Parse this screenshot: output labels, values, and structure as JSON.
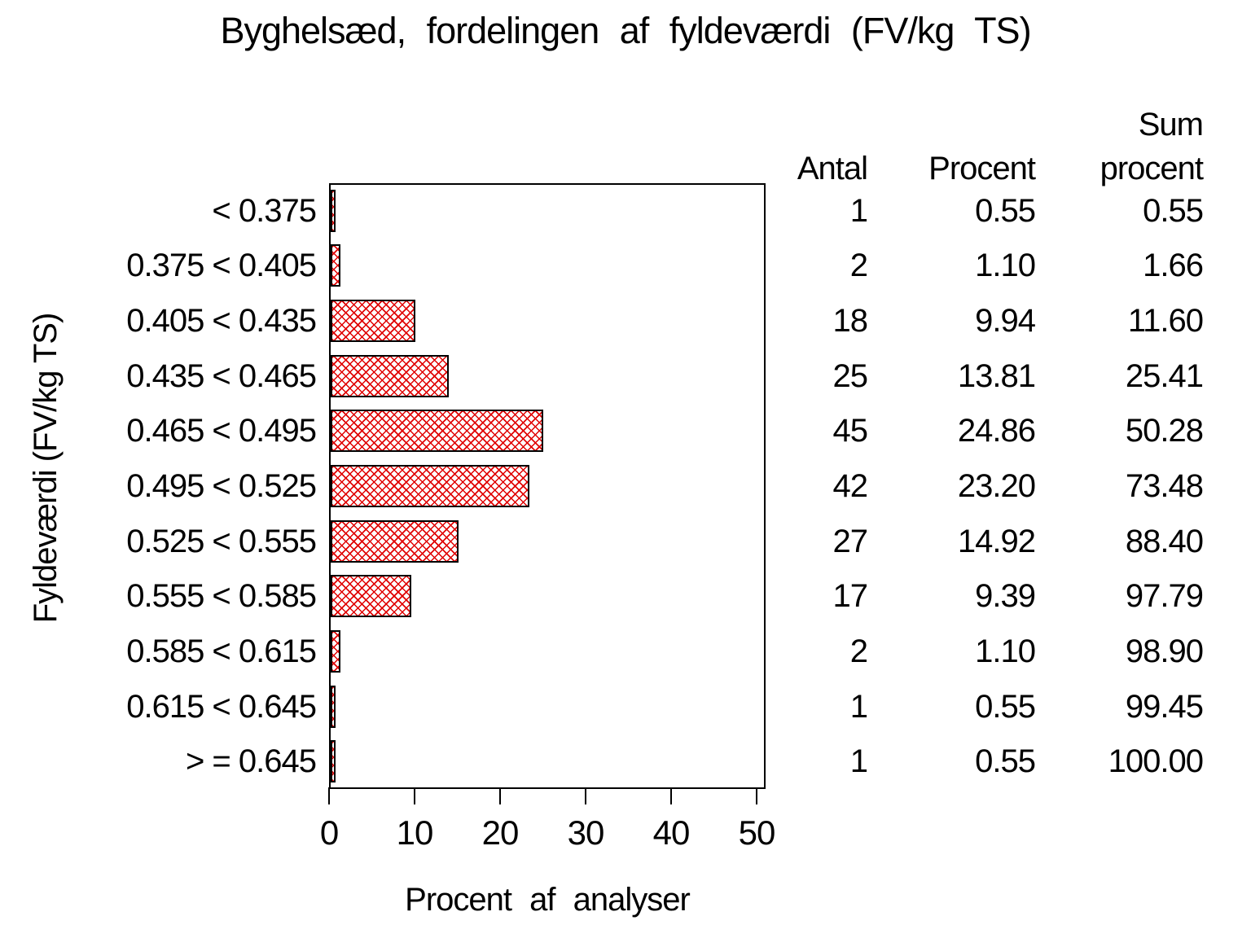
{
  "title": "Byghelsæd, fordelingen af fyldeværdi (FV/kg TS)",
  "colors": {
    "bar_hatch": "#e00000",
    "bar_border": "#000000",
    "axis": "#000000",
    "text": "#000000",
    "background": "#ffffff"
  },
  "chart_data": {
    "type": "bar",
    "orientation": "horizontal",
    "title": "Byghelsæd, fordelingen af fyldeværdi (FV/kg TS)",
    "xlabel": "Procent af analyser",
    "ylabel": "Fyldeværdi (FV/kg TS)",
    "xlim": [
      0,
      51
    ],
    "xticks": [
      "0",
      "10",
      "20",
      "30",
      "40",
      "50"
    ],
    "grid": false,
    "legend": null,
    "bar_style": "red diagonal crosshatch fill with black outline",
    "categories": [
      "< 0.375",
      "0.375 < 0.405",
      "0.405 < 0.435",
      "0.435 < 0.465",
      "0.465 < 0.495",
      "0.495 < 0.525",
      "0.525 < 0.555",
      "0.555 < 0.585",
      "0.585 < 0.615",
      "0.615 < 0.645",
      "> = 0.645"
    ],
    "series": [
      {
        "name": "Procent af analyser",
        "values": [
          0.55,
          1.1,
          9.94,
          13.81,
          24.86,
          23.2,
          14.92,
          9.39,
          1.1,
          0.55,
          0.55
        ]
      }
    ],
    "table": {
      "headers": {
        "antal": "Antal",
        "procent": "Procent",
        "sum_procent_line1": "Sum",
        "sum_procent_line2": "procent"
      },
      "rows": [
        {
          "antal": "1",
          "procent": "0.55",
          "sum_procent": "0.55"
        },
        {
          "antal": "2",
          "procent": "1.10",
          "sum_procent": "1.66"
        },
        {
          "antal": "18",
          "procent": "9.94",
          "sum_procent": "11.60"
        },
        {
          "antal": "25",
          "procent": "13.81",
          "sum_procent": "25.41"
        },
        {
          "antal": "45",
          "procent": "24.86",
          "sum_procent": "50.28"
        },
        {
          "antal": "42",
          "procent": "23.20",
          "sum_procent": "73.48"
        },
        {
          "antal": "27",
          "procent": "14.92",
          "sum_procent": "88.40"
        },
        {
          "antal": "17",
          "procent": "9.39",
          "sum_procent": "97.79"
        },
        {
          "antal": "2",
          "procent": "1.10",
          "sum_procent": "98.90"
        },
        {
          "antal": "1",
          "procent": "0.55",
          "sum_procent": "99.45"
        },
        {
          "antal": "1",
          "procent": "0.55",
          "sum_procent": "100.00"
        }
      ]
    }
  }
}
